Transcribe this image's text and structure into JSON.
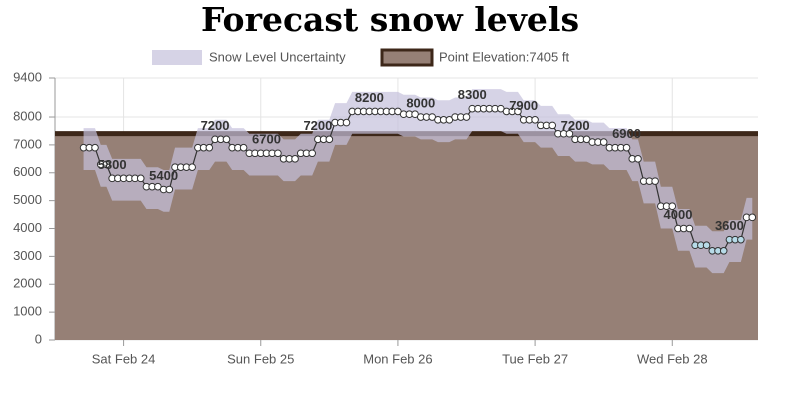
{
  "chart_data": {
    "type": "line",
    "title": "Forecast snow levels",
    "band_name": "Snow Level Uncertainty",
    "band_color": "rgba(196,192,220,0.7)",
    "elevation": {
      "name": "Point Elevation:7405 ft",
      "value": 7405,
      "color": "#968076",
      "border": "#3d2719"
    },
    "line_color": "#333333",
    "xlim": [
      0,
      123
    ],
    "xticks": [
      {
        "value": 12,
        "label": "Sat Feb 24"
      },
      {
        "value": 36,
        "label": "Sun Feb 25"
      },
      {
        "value": 60,
        "label": "Mon Feb 26"
      },
      {
        "value": 84,
        "label": "Tue Feb 27"
      },
      {
        "value": 108,
        "label": "Wed Feb 28"
      }
    ],
    "ylim": [
      0,
      9400
    ],
    "yticks": [
      0,
      1000,
      2000,
      3000,
      4000,
      5000,
      6000,
      7000,
      8000,
      9400
    ],
    "grid": true,
    "x": [
      5,
      6,
      7,
      8,
      9,
      10,
      11,
      12,
      13,
      14,
      15,
      16,
      17,
      18,
      19,
      20,
      21,
      22,
      23,
      24,
      25,
      26,
      27,
      28,
      29,
      30,
      31,
      32,
      33,
      34,
      35,
      36,
      37,
      38,
      39,
      40,
      41,
      42,
      43,
      44,
      45,
      46,
      47,
      48,
      49,
      50,
      51,
      52,
      53,
      54,
      55,
      56,
      57,
      58,
      59,
      60,
      61,
      62,
      63,
      64,
      65,
      66,
      67,
      68,
      69,
      70,
      71,
      72,
      73,
      74,
      75,
      76,
      77,
      78,
      79,
      80,
      81,
      82,
      83,
      84,
      85,
      86,
      87,
      88,
      89,
      90,
      91,
      92,
      93,
      94,
      95,
      96,
      97,
      98,
      99,
      100,
      101,
      102,
      103,
      104,
      105,
      106,
      107,
      108,
      109,
      110,
      111,
      112,
      113,
      114,
      115,
      116,
      117,
      118,
      119,
      120,
      121,
      122
    ],
    "values": [
      6900,
      6900,
      6900,
      6300,
      6300,
      5800,
      5800,
      5800,
      5800,
      5800,
      5800,
      5500,
      5500,
      5500,
      5400,
      5400,
      6200,
      6200,
      6200,
      6200,
      6900,
      6900,
      6900,
      7200,
      7200,
      7200,
      6900,
      6900,
      6900,
      6700,
      6700,
      6700,
      6700,
      6700,
      6700,
      6500,
      6500,
      6500,
      6700,
      6700,
      6700,
      7200,
      7200,
      7200,
      7800,
      7800,
      7800,
      8200,
      8200,
      8200,
      8200,
      8200,
      8200,
      8200,
      8200,
      8200,
      8100,
      8100,
      8100,
      8000,
      8000,
      8000,
      7900,
      7900,
      7900,
      8000,
      8000,
      8000,
      8300,
      8300,
      8300,
      8300,
      8300,
      8300,
      8200,
      8200,
      8200,
      7900,
      7900,
      7900,
      7700,
      7700,
      7700,
      7400,
      7400,
      7400,
      7200,
      7200,
      7200,
      7100,
      7100,
      7100,
      6900,
      6900,
      6900,
      6900,
      6500,
      6500,
      5700,
      5700,
      5700,
      4800,
      4800,
      4800,
      4000,
      4000,
      4000,
      3400,
      3400,
      3400,
      3200,
      3200,
      3200,
      3600,
      3600,
      3600,
      4400,
      4400
    ],
    "upper": [
      7600,
      7600,
      7600,
      7000,
      7000,
      6500,
      6500,
      6500,
      6500,
      6500,
      6500,
      6200,
      6200,
      6200,
      6100,
      6100,
      6900,
      6900,
      6900,
      6900,
      7600,
      7600,
      7600,
      7900,
      7900,
      7900,
      7600,
      7600,
      7600,
      7400,
      7400,
      7400,
      7400,
      7400,
      7400,
      7200,
      7200,
      7200,
      7400,
      7400,
      7400,
      7900,
      7900,
      7900,
      8500,
      8500,
      8500,
      8900,
      8900,
      8900,
      8900,
      8900,
      8900,
      8900,
      8900,
      8900,
      8800,
      8800,
      8800,
      8700,
      8700,
      8700,
      8600,
      8600,
      8600,
      8700,
      8700,
      8700,
      9000,
      9000,
      9000,
      9000,
      9000,
      9000,
      8900,
      8900,
      8900,
      8600,
      8600,
      8600,
      8400,
      8400,
      8400,
      8100,
      8100,
      8100,
      7900,
      7900,
      7900,
      7800,
      7800,
      7800,
      7600,
      7600,
      7600,
      7600,
      7200,
      7200,
      6400,
      6400,
      6400,
      5500,
      5500,
      5500,
      4700,
      4700,
      4700,
      4100,
      4100,
      4100,
      3900,
      3900,
      3900,
      4300,
      4300,
      4300,
      5100,
      5100
    ],
    "lower": [
      6100,
      6100,
      6100,
      5500,
      5500,
      5000,
      5000,
      5000,
      5000,
      5000,
      5000,
      4700,
      4700,
      4700,
      4600,
      4600,
      5400,
      5400,
      5400,
      5400,
      6100,
      6100,
      6100,
      6400,
      6400,
      6400,
      6100,
      6100,
      6100,
      5900,
      5900,
      5900,
      5900,
      5900,
      5900,
      5700,
      5700,
      5700,
      5900,
      5900,
      5900,
      6400,
      6400,
      6400,
      7000,
      7000,
      7000,
      7400,
      7400,
      7400,
      7400,
      7400,
      7400,
      7400,
      7400,
      7400,
      7300,
      7300,
      7300,
      7200,
      7200,
      7200,
      7100,
      7100,
      7100,
      7200,
      7200,
      7200,
      7500,
      7500,
      7500,
      7500,
      7500,
      7500,
      7400,
      7400,
      7400,
      7100,
      7100,
      7100,
      6900,
      6900,
      6900,
      6600,
      6600,
      6600,
      6400,
      6400,
      6400,
      6300,
      6300,
      6300,
      6100,
      6100,
      6100,
      6100,
      5700,
      5700,
      4900,
      4900,
      4900,
      4000,
      4000,
      4000,
      3200,
      3200,
      3200,
      2600,
      2600,
      2600,
      2400,
      2400,
      2400,
      2800,
      2800,
      2800,
      3600,
      3600
    ],
    "value_labels": [
      null,
      null,
      null,
      null,
      null,
      "5800",
      null,
      null,
      null,
      null,
      null,
      null,
      null,
      null,
      "5400",
      null,
      null,
      null,
      null,
      null,
      null,
      null,
      null,
      "7200",
      null,
      null,
      null,
      null,
      null,
      null,
      null,
      null,
      "6700",
      null,
      null,
      null,
      null,
      null,
      null,
      null,
      null,
      "7200",
      null,
      null,
      null,
      null,
      null,
      null,
      null,
      null,
      "8200",
      null,
      null,
      null,
      null,
      null,
      null,
      null,
      null,
      "8000",
      null,
      null,
      null,
      null,
      null,
      null,
      null,
      null,
      "8300",
      null,
      null,
      null,
      null,
      null,
      null,
      null,
      null,
      "7900",
      null,
      null,
      null,
      null,
      null,
      null,
      null,
      null,
      "7200",
      null,
      null,
      null,
      null,
      null,
      null,
      null,
      null,
      "6900",
      null,
      null,
      null,
      null,
      null,
      null,
      null,
      null,
      "4000",
      null,
      null,
      null,
      null,
      null,
      null,
      null,
      null,
      "3600",
      null,
      null,
      null,
      null
    ],
    "point_colors": [
      "#fff",
      "#fff",
      "#fff",
      "#fff",
      "#fff",
      "#fff",
      "#fff",
      "#fff",
      "#fff",
      "#fff",
      "#fff",
      "#fff",
      "#fff",
      "#fff",
      "#fff",
      "#fff",
      "#fff",
      "#fff",
      "#fff",
      "#fff",
      "#fff",
      "#fff",
      "#fff",
      "#fff",
      "#fff",
      "#fff",
      "#fff",
      "#fff",
      "#fff",
      "#fff",
      "#fff",
      "#fff",
      "#fff",
      "#fff",
      "#fff",
      "#fff",
      "#fff",
      "#fff",
      "#fff",
      "#fff",
      "#fff",
      "#fff",
      "#fff",
      "#fff",
      "#fff",
      "#fff",
      "#fff",
      "#fff",
      "#fff",
      "#fff",
      "#fff",
      "#fff",
      "#fff",
      "#fff",
      "#fff",
      "#fff",
      "#fff",
      "#fff",
      "#fff",
      "#fff",
      "#fff",
      "#fff",
      "#fff",
      "#fff",
      "#fff",
      "#fff",
      "#fff",
      "#fff",
      "#fff",
      "#fff",
      "#fff",
      "#fff",
      "#fff",
      "#fff",
      "#fff",
      "#fff",
      "#fff",
      "#fff",
      "#fff",
      "#fff",
      "#fff",
      "#fff",
      "#fff",
      "#fff",
      "#fff",
      "#fff",
      "#fff",
      "#fff",
      "#fff",
      "#fff",
      "#fff",
      "#fff",
      "#fff",
      "#fff",
      "#fff",
      "#fff",
      "#fff",
      "#fff",
      "#fff",
      "#fff",
      "#fff",
      "#fff",
      "#fff",
      "#fff",
      "#fff",
      "#fff",
      "#fff",
      "#b7dbe8",
      "#b7dbe8",
      "#b7dbe8",
      "#b7dbe8",
      "#b7dbe8",
      "#b7dbe8",
      "#b7dbe8",
      "#b7dbe8",
      "#b7dbe8",
      "#fff",
      "#fff"
    ]
  }
}
